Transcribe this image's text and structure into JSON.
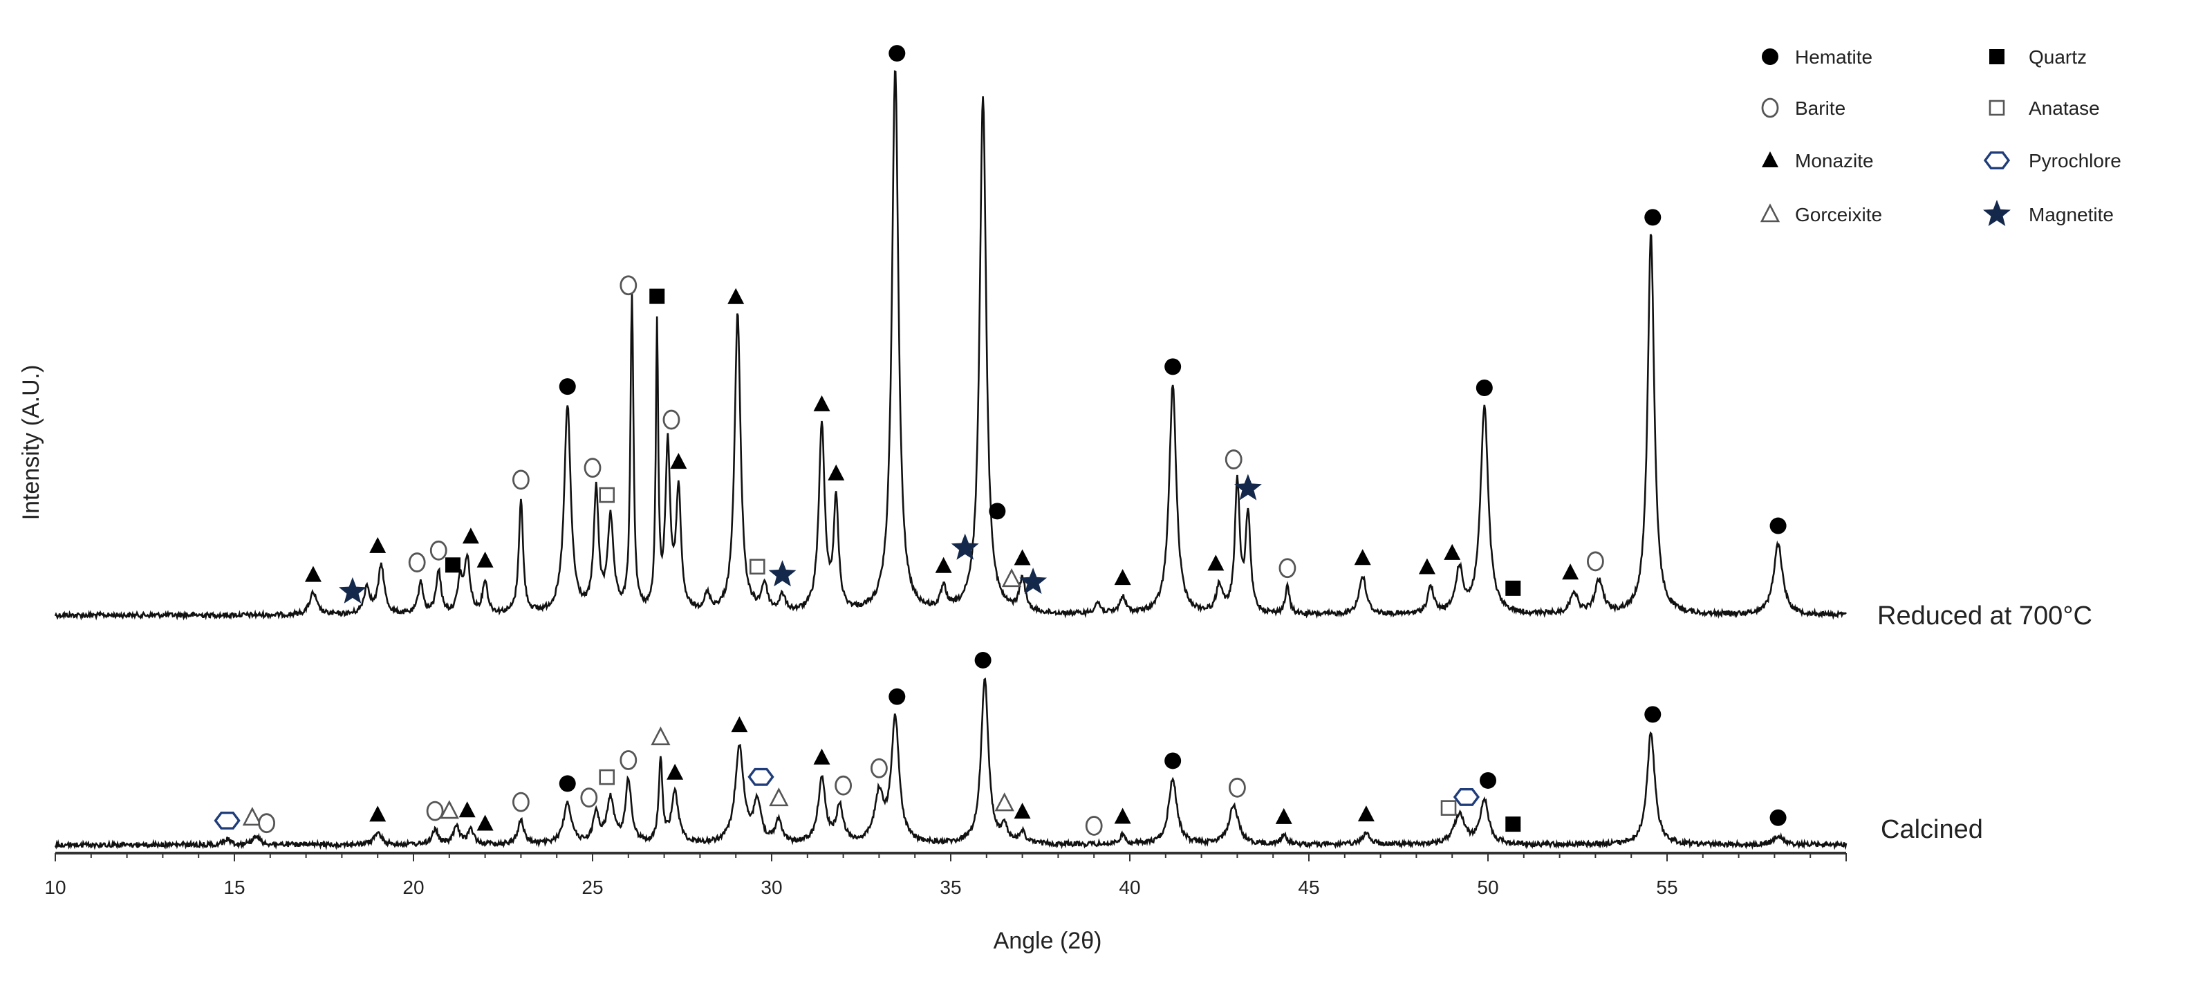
{
  "chart_data": {
    "type": "line",
    "title": "",
    "xlabel": "Angle (2θ)",
    "ylabel": "Intensity (A.U.)",
    "xlim": [
      10,
      60
    ],
    "x_ticks": [
      10,
      15,
      20,
      25,
      30,
      35,
      40,
      45,
      50,
      55
    ],
    "grid": false,
    "legend_position": "top-right",
    "phases": [
      {
        "key": "hematite",
        "name": "Hematite",
        "marker": "filled-circle"
      },
      {
        "key": "quartz",
        "name": "Quartz",
        "marker": "filled-square"
      },
      {
        "key": "barite",
        "name": "Barite",
        "marker": "open-circle"
      },
      {
        "key": "anatase",
        "name": "Anatase",
        "marker": "open-square"
      },
      {
        "key": "monazite",
        "name": "Monazite",
        "marker": "filled-triangle"
      },
      {
        "key": "pyrochlore",
        "name": "Pyrochlore",
        "marker": "open-hexagon"
      },
      {
        "key": "gorceixite",
        "name": "Gorceixite",
        "marker": "open-triangle"
      },
      {
        "key": "magnetite",
        "name": "Magnetite",
        "marker": "star"
      }
    ],
    "series": [
      {
        "name": "Reduced at 700°C",
        "baseline": 0.0,
        "peaks": [
          [
            17.2,
            0.04,
            0.12
          ],
          [
            18.7,
            0.05,
            0.1
          ],
          [
            19.1,
            0.09,
            0.1
          ],
          [
            20.2,
            0.06,
            0.08
          ],
          [
            20.7,
            0.08,
            0.08
          ],
          [
            21.3,
            0.06,
            0.08
          ],
          [
            21.5,
            0.1,
            0.09
          ],
          [
            22.0,
            0.06,
            0.08
          ],
          [
            23.0,
            0.21,
            0.07
          ],
          [
            24.3,
            0.38,
            0.11
          ],
          [
            25.1,
            0.22,
            0.08
          ],
          [
            25.5,
            0.17,
            0.1
          ],
          [
            26.1,
            0.58,
            0.05
          ],
          [
            26.8,
            0.52,
            0.04
          ],
          [
            27.1,
            0.3,
            0.08
          ],
          [
            27.4,
            0.22,
            0.08
          ],
          [
            28.2,
            0.03,
            0.1
          ],
          [
            29.05,
            0.55,
            0.1
          ],
          [
            29.8,
            0.05,
            0.1
          ],
          [
            30.3,
            0.03,
            0.1
          ],
          [
            31.4,
            0.34,
            0.1
          ],
          [
            31.8,
            0.2,
            0.08
          ],
          [
            33.45,
            1.0,
            0.11
          ],
          [
            34.8,
            0.04,
            0.1
          ],
          [
            35.9,
            0.95,
            0.11
          ],
          [
            37.0,
            0.06,
            0.1
          ],
          [
            39.1,
            0.02,
            0.1
          ],
          [
            39.8,
            0.03,
            0.1
          ],
          [
            41.2,
            0.42,
            0.12
          ],
          [
            42.5,
            0.05,
            0.1
          ],
          [
            43.0,
            0.24,
            0.08
          ],
          [
            43.3,
            0.18,
            0.08
          ],
          [
            44.4,
            0.05,
            0.07
          ],
          [
            46.5,
            0.07,
            0.12
          ],
          [
            48.4,
            0.05,
            0.1
          ],
          [
            49.2,
            0.08,
            0.12
          ],
          [
            49.9,
            0.38,
            0.13
          ],
          [
            52.4,
            0.04,
            0.12
          ],
          [
            53.1,
            0.06,
            0.14
          ],
          [
            54.55,
            0.7,
            0.11
          ],
          [
            58.1,
            0.13,
            0.15
          ]
        ]
      },
      {
        "name": "Calcined",
        "baseline": 0.0,
        "peaks": [
          [
            14.8,
            0.02,
            0.1
          ],
          [
            15.6,
            0.03,
            0.12
          ],
          [
            19.0,
            0.04,
            0.12
          ],
          [
            20.6,
            0.05,
            0.1
          ],
          [
            21.2,
            0.06,
            0.1
          ],
          [
            21.6,
            0.05,
            0.1
          ],
          [
            23.0,
            0.08,
            0.1
          ],
          [
            24.3,
            0.14,
            0.13
          ],
          [
            25.1,
            0.1,
            0.1
          ],
          [
            25.5,
            0.15,
            0.12
          ],
          [
            26.0,
            0.21,
            0.1
          ],
          [
            26.9,
            0.28,
            0.06
          ],
          [
            27.3,
            0.17,
            0.12
          ],
          [
            29.1,
            0.33,
            0.14
          ],
          [
            29.6,
            0.14,
            0.12
          ],
          [
            30.2,
            0.08,
            0.1
          ],
          [
            31.4,
            0.22,
            0.12
          ],
          [
            31.9,
            0.12,
            0.12
          ],
          [
            33.0,
            0.16,
            0.15
          ],
          [
            33.45,
            0.42,
            0.13
          ],
          [
            35.95,
            0.56,
            0.12
          ],
          [
            36.5,
            0.05,
            0.1
          ],
          [
            37.0,
            0.04,
            0.1
          ],
          [
            39.8,
            0.03,
            0.1
          ],
          [
            41.2,
            0.22,
            0.14
          ],
          [
            42.9,
            0.13,
            0.16
          ],
          [
            44.3,
            0.03,
            0.1
          ],
          [
            46.6,
            0.04,
            0.12
          ],
          [
            49.2,
            0.1,
            0.18
          ],
          [
            49.9,
            0.15,
            0.14
          ],
          [
            54.55,
            0.38,
            0.13
          ],
          [
            58.1,
            0.03,
            0.14
          ]
        ]
      }
    ],
    "markers": [
      {
        "series": 0,
        "x": 17.2,
        "phase": "monazite"
      },
      {
        "series": 0,
        "x": 18.3,
        "phase": "magnetite"
      },
      {
        "series": 0,
        "x": 19.0,
        "phase": "monazite"
      },
      {
        "series": 0,
        "x": 20.1,
        "phase": "barite"
      },
      {
        "series": 0,
        "x": 20.7,
        "phase": "barite"
      },
      {
        "series": 0,
        "x": 21.1,
        "phase": "quartz"
      },
      {
        "series": 0,
        "x": 21.6,
        "phase": "monazite"
      },
      {
        "series": 0,
        "x": 22.0,
        "phase": "monazite"
      },
      {
        "series": 0,
        "x": 23.0,
        "phase": "barite"
      },
      {
        "series": 0,
        "x": 24.3,
        "phase": "hematite"
      },
      {
        "series": 0,
        "x": 25.0,
        "phase": "barite"
      },
      {
        "series": 0,
        "x": 25.4,
        "phase": "anatase"
      },
      {
        "series": 0,
        "x": 26.0,
        "phase": "barite"
      },
      {
        "series": 0,
        "x": 26.8,
        "phase": "quartz"
      },
      {
        "series": 0,
        "x": 27.2,
        "phase": "barite"
      },
      {
        "series": 0,
        "x": 27.4,
        "phase": "monazite"
      },
      {
        "series": 0,
        "x": 29.0,
        "phase": "monazite"
      },
      {
        "series": 0,
        "x": 29.6,
        "phase": "anatase"
      },
      {
        "series": 0,
        "x": 30.3,
        "phase": "magnetite"
      },
      {
        "series": 0,
        "x": 31.4,
        "phase": "monazite"
      },
      {
        "series": 0,
        "x": 31.8,
        "phase": "monazite"
      },
      {
        "series": 0,
        "x": 33.5,
        "phase": "hematite"
      },
      {
        "series": 0,
        "x": 34.8,
        "phase": "monazite"
      },
      {
        "series": 0,
        "x": 35.4,
        "phase": "magnetite"
      },
      {
        "series": 0,
        "x": 36.3,
        "phase": "hematite"
      },
      {
        "series": 0,
        "x": 36.7,
        "phase": "gorceixite"
      },
      {
        "series": 0,
        "x": 37.0,
        "phase": "monazite"
      },
      {
        "series": 0,
        "x": 37.3,
        "phase": "magnetite"
      },
      {
        "series": 0,
        "x": 39.8,
        "phase": "monazite"
      },
      {
        "series": 0,
        "x": 41.2,
        "phase": "hematite"
      },
      {
        "series": 0,
        "x": 42.4,
        "phase": "monazite"
      },
      {
        "series": 0,
        "x": 42.9,
        "phase": "barite"
      },
      {
        "series": 0,
        "x": 43.3,
        "phase": "magnetite"
      },
      {
        "series": 0,
        "x": 44.4,
        "phase": "barite"
      },
      {
        "series": 0,
        "x": 46.5,
        "phase": "monazite"
      },
      {
        "series": 0,
        "x": 48.3,
        "phase": "monazite"
      },
      {
        "series": 0,
        "x": 49.0,
        "phase": "monazite"
      },
      {
        "series": 0,
        "x": 49.9,
        "phase": "hematite"
      },
      {
        "series": 0,
        "x": 50.7,
        "phase": "quartz"
      },
      {
        "series": 0,
        "x": 52.3,
        "phase": "monazite"
      },
      {
        "series": 0,
        "x": 53.0,
        "phase": "barite"
      },
      {
        "series": 0,
        "x": 54.6,
        "phase": "hematite"
      },
      {
        "series": 0,
        "x": 58.1,
        "phase": "hematite"
      },
      {
        "series": 1,
        "x": 14.8,
        "phase": "pyrochlore"
      },
      {
        "series": 1,
        "x": 15.5,
        "phase": "gorceixite"
      },
      {
        "series": 1,
        "x": 15.9,
        "phase": "barite"
      },
      {
        "series": 1,
        "x": 19.0,
        "phase": "monazite"
      },
      {
        "series": 1,
        "x": 20.6,
        "phase": "barite"
      },
      {
        "series": 1,
        "x": 21.0,
        "phase": "gorceixite"
      },
      {
        "series": 1,
        "x": 21.5,
        "phase": "monazite"
      },
      {
        "series": 1,
        "x": 22.0,
        "phase": "monazite"
      },
      {
        "series": 1,
        "x": 23.0,
        "phase": "barite"
      },
      {
        "series": 1,
        "x": 24.3,
        "phase": "hematite"
      },
      {
        "series": 1,
        "x": 24.9,
        "phase": "barite"
      },
      {
        "series": 1,
        "x": 25.4,
        "phase": "anatase"
      },
      {
        "series": 1,
        "x": 26.0,
        "phase": "barite"
      },
      {
        "series": 1,
        "x": 26.9,
        "phase": "gorceixite"
      },
      {
        "series": 1,
        "x": 27.3,
        "phase": "monazite"
      },
      {
        "series": 1,
        "x": 29.1,
        "phase": "monazite"
      },
      {
        "series": 1,
        "x": 29.7,
        "phase": "pyrochlore"
      },
      {
        "series": 1,
        "x": 30.2,
        "phase": "gorceixite"
      },
      {
        "series": 1,
        "x": 31.4,
        "phase": "monazite"
      },
      {
        "series": 1,
        "x": 32.0,
        "phase": "barite"
      },
      {
        "series": 1,
        "x": 33.0,
        "phase": "barite"
      },
      {
        "series": 1,
        "x": 33.5,
        "phase": "hematite"
      },
      {
        "series": 1,
        "x": 35.9,
        "phase": "hematite"
      },
      {
        "series": 1,
        "x": 36.5,
        "phase": "gorceixite"
      },
      {
        "series": 1,
        "x": 37.0,
        "phase": "monazite"
      },
      {
        "series": 1,
        "x": 39.0,
        "phase": "barite"
      },
      {
        "series": 1,
        "x": 39.8,
        "phase": "monazite"
      },
      {
        "series": 1,
        "x": 41.2,
        "phase": "hematite"
      },
      {
        "series": 1,
        "x": 43.0,
        "phase": "barite"
      },
      {
        "series": 1,
        "x": 44.3,
        "phase": "monazite"
      },
      {
        "series": 1,
        "x": 46.6,
        "phase": "monazite"
      },
      {
        "series": 1,
        "x": 48.9,
        "phase": "anatase"
      },
      {
        "series": 1,
        "x": 49.4,
        "phase": "pyrochlore"
      },
      {
        "series": 1,
        "x": 50.0,
        "phase": "hematite"
      },
      {
        "series": 1,
        "x": 50.7,
        "phase": "quartz"
      },
      {
        "series": 1,
        "x": 54.6,
        "phase": "hematite"
      },
      {
        "series": 1,
        "x": 58.1,
        "phase": "hematite"
      }
    ]
  },
  "colors": {
    "line": "#111111",
    "marker_dark": "#000000",
    "marker_open": "#555555",
    "pyrochlore": "#1f3d7a",
    "magnetite": "#14284b"
  }
}
